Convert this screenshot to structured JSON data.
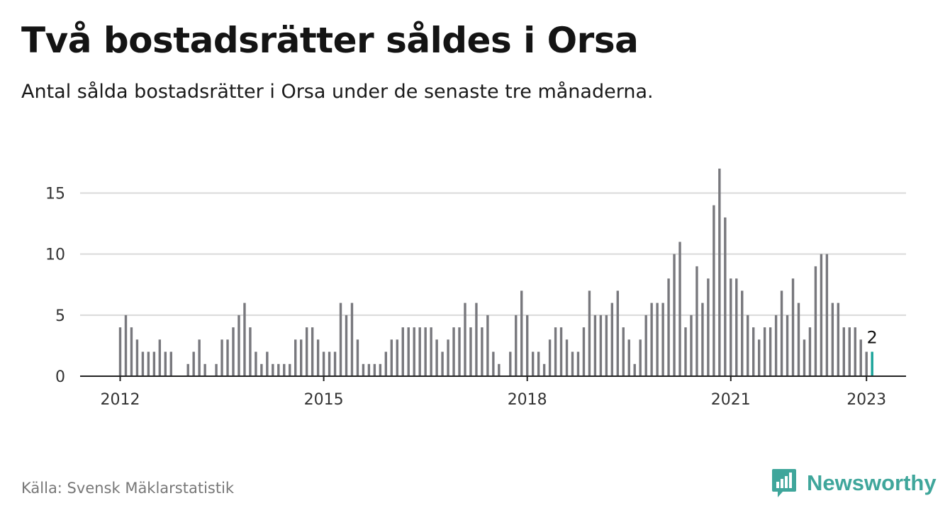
{
  "title": "Två bostadsrätter såldes i Orsa",
  "subtitle": "Antal sålda bostadsrätter i Orsa under de senaste tre månaderna.",
  "source": "Källa: Svensk Mäklarstatistik",
  "brand": {
    "name": "Newsworthy",
    "icon": "newsworthy-logo-icon"
  },
  "colors": {
    "bar": "#78787d",
    "highlight": "#1aa39a",
    "brand": "#3fa69b",
    "grid": "#d9d9d9",
    "axis": "#222222"
  },
  "chart_data": {
    "type": "bar",
    "x_start": "2012-01",
    "x_interval": "month",
    "ylim": [
      0,
      17
    ],
    "yticks": [
      0,
      5,
      10,
      15
    ],
    "xticks": [
      {
        "label": "2012",
        "month_index": 0
      },
      {
        "label": "2015",
        "month_index": 36
      },
      {
        "label": "2018",
        "month_index": 72
      },
      {
        "label": "2021",
        "month_index": 108
      },
      {
        "label": "2023",
        "month_index": 132
      }
    ],
    "grid": true,
    "values": [
      4,
      5,
      4,
      3,
      2,
      2,
      2,
      3,
      2,
      2,
      0,
      0,
      1,
      2,
      3,
      1,
      0,
      1,
      3,
      3,
      4,
      5,
      6,
      4,
      2,
      1,
      2,
      1,
      1,
      1,
      1,
      3,
      3,
      4,
      4,
      3,
      2,
      2,
      2,
      6,
      5,
      6,
      3,
      1,
      1,
      1,
      1,
      2,
      3,
      3,
      4,
      4,
      4,
      4,
      4,
      4,
      3,
      2,
      3,
      4,
      4,
      6,
      4,
      6,
      4,
      5,
      2,
      1,
      0,
      2,
      5,
      7,
      5,
      2,
      2,
      1,
      3,
      4,
      4,
      3,
      2,
      2,
      4,
      7,
      5,
      5,
      5,
      6,
      7,
      4,
      3,
      1,
      3,
      5,
      6,
      6,
      6,
      8,
      10,
      11,
      4,
      5,
      9,
      6,
      8,
      14,
      17,
      13,
      8,
      8,
      7,
      5,
      4,
      3,
      4,
      4,
      5,
      7,
      5,
      8,
      6,
      3,
      4,
      9,
      10,
      10,
      6,
      6,
      4,
      4,
      4,
      3,
      2,
      2
    ],
    "highlight_index": 133,
    "highlight_label": "2"
  }
}
